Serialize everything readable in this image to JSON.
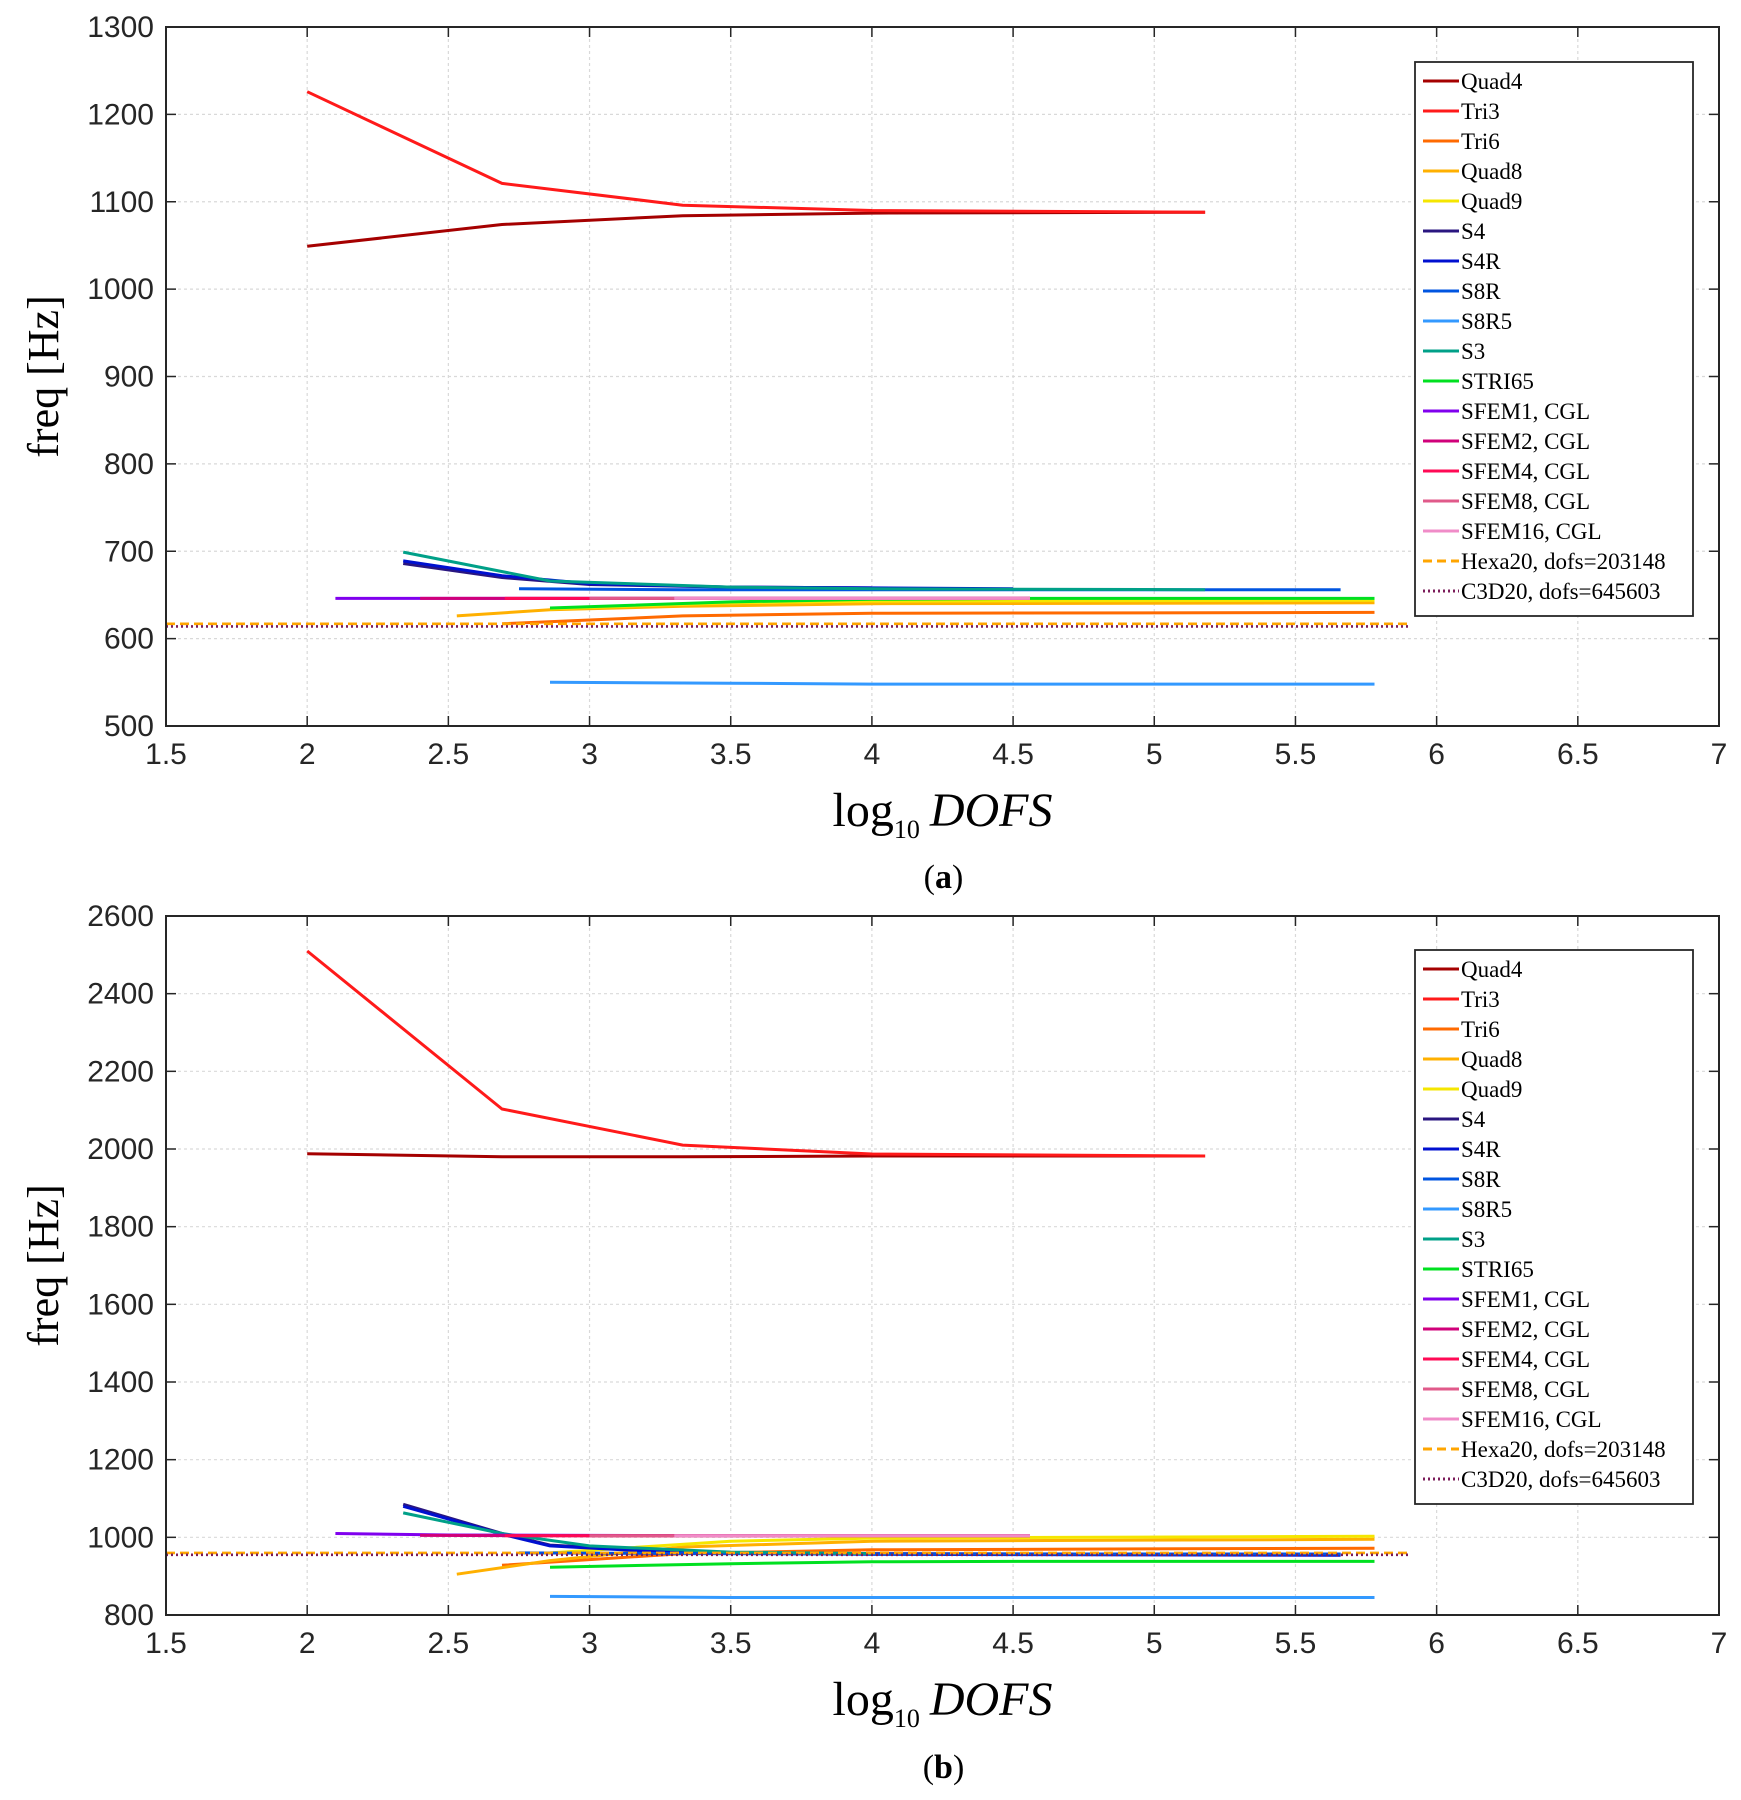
{
  "chart_data": [
    {
      "type": "line",
      "panel": "a",
      "caption": {
        "open": "(",
        "letter": "a",
        "close": ")"
      },
      "xlabel": {
        "main": "log",
        "sub": "10",
        "var": "DOFS"
      },
      "ylabel": "freq [Hz]",
      "xlim": [
        1.5,
        7
      ],
      "ylim": [
        500,
        1300
      ],
      "xticks": [
        1.5,
        2,
        2.5,
        3,
        3.5,
        4,
        4.5,
        5,
        5.5,
        6,
        6.5,
        7
      ],
      "xtick_labels": [
        "1.5",
        "2",
        "2.5",
        "3",
        "3.5",
        "4",
        "4.5",
        "5",
        "5.5",
        "6",
        "6.5",
        "7"
      ],
      "yticks": [
        500,
        600,
        700,
        800,
        900,
        1000,
        1100,
        1200,
        1300
      ],
      "ytick_labels": [
        "500",
        "600",
        "700",
        "800",
        "900",
        "1000",
        "1100",
        "1200",
        "1300"
      ],
      "grid": true,
      "legend_position": "top-right",
      "series": [
        {
          "name": "Quad4",
          "color": "#a50000",
          "dash": "solid",
          "x": [
            2.0,
            2.69,
            3.33,
            4.0,
            5.18
          ],
          "y": [
            1049,
            1074,
            1084,
            1087,
            1088
          ]
        },
        {
          "name": "Tri3",
          "color": "#ff1a1a",
          "dash": "solid",
          "x": [
            2.0,
            2.69,
            3.33,
            4.0,
            5.18
          ],
          "y": [
            1226,
            1121,
            1096,
            1090,
            1088
          ]
        },
        {
          "name": "Tri6",
          "color": "#ff6a00",
          "dash": "solid",
          "x": [
            2.69,
            3.33,
            4.0,
            5.78
          ],
          "y": [
            617,
            626,
            629,
            630
          ]
        },
        {
          "name": "Quad8",
          "color": "#ffb000",
          "dash": "solid",
          "x": [
            2.53,
            2.86,
            3.33,
            4.0,
            5.78
          ],
          "y": [
            626,
            633,
            637,
            640,
            641
          ]
        },
        {
          "name": "Quad9",
          "color": "#f5e600",
          "dash": "solid",
          "x": [
            2.86,
            3.5,
            4.0,
            5.78
          ],
          "y": [
            634,
            641,
            643,
            644
          ]
        },
        {
          "name": "S4",
          "color": "#2a1680",
          "dash": "solid",
          "x": [
            2.34,
            2.69,
            3.0,
            3.5,
            4.0
          ],
          "y": [
            686,
            670,
            662,
            659,
            658
          ]
        },
        {
          "name": "S4R",
          "color": "#0010d0",
          "dash": "solid",
          "x": [
            2.34,
            2.69,
            3.0,
            3.5,
            4.0,
            4.5
          ],
          "y": [
            689,
            672,
            663,
            659,
            658,
            657
          ]
        },
        {
          "name": "S8R",
          "color": "#0055e0",
          "dash": "solid",
          "x": [
            2.75,
            3.33,
            4.0,
            5.66
          ],
          "y": [
            657,
            656,
            656,
            656
          ]
        },
        {
          "name": "S8R5",
          "color": "#3399ff",
          "dash": "solid",
          "x": [
            2.86,
            3.5,
            4.0,
            5.78
          ],
          "y": [
            550,
            549,
            548,
            548
          ]
        },
        {
          "name": "S3",
          "color": "#00a088",
          "dash": "solid",
          "x": [
            2.34,
            2.86,
            3.5,
            4.0,
            5.18
          ],
          "y": [
            699,
            666,
            659,
            657,
            656
          ]
        },
        {
          "name": "STRI65",
          "color": "#00e020",
          "dash": "solid",
          "x": [
            2.86,
            3.5,
            4.0,
            4.56,
            5.78
          ],
          "y": [
            635,
            642,
            645,
            646,
            646
          ]
        },
        {
          "name": "SFEM1, CGL",
          "color": "#8000ee",
          "dash": "solid",
          "x": [
            2.1,
            3.0,
            4.0,
            4.56
          ],
          "y": [
            646,
            646,
            646,
            646
          ]
        },
        {
          "name": "SFEM2, CGL",
          "color": "#d0007a",
          "dash": "solid",
          "x": [
            2.4,
            3.0,
            4.0,
            4.56
          ],
          "y": [
            646,
            646,
            646,
            646
          ]
        },
        {
          "name": "SFEM4, CGL",
          "color": "#ff0a55",
          "dash": "solid",
          "x": [
            2.7,
            4.56
          ],
          "y": [
            646,
            646
          ]
        },
        {
          "name": "SFEM8, CGL",
          "color": "#e05a8a",
          "dash": "solid",
          "x": [
            3.0,
            4.56
          ],
          "y": [
            646,
            646
          ]
        },
        {
          "name": "SFEM16, CGL",
          "color": "#f08cc8",
          "dash": "solid",
          "x": [
            3.3,
            4.56
          ],
          "y": [
            646,
            646
          ]
        },
        {
          "name": "Hexa20, dofs=203148",
          "color": "#ffa500",
          "dash": "dashed",
          "x": [
            1.5,
            5.9
          ],
          "y": [
            617,
            617
          ]
        },
        {
          "name": "C3D20, dofs=645603",
          "color": "#7b1c5a",
          "dash": "dotted",
          "x": [
            1.5,
            5.9
          ],
          "y": [
            614,
            614
          ]
        }
      ]
    },
    {
      "type": "line",
      "panel": "b",
      "caption": {
        "open": "(",
        "letter": "b",
        "close": ")"
      },
      "xlabel": {
        "main": "log",
        "sub": "10",
        "var": "DOFS"
      },
      "ylabel": "freq [Hz]",
      "xlim": [
        1.5,
        7
      ],
      "ylim": [
        800,
        2600
      ],
      "xticks": [
        1.5,
        2,
        2.5,
        3,
        3.5,
        4,
        4.5,
        5,
        5.5,
        6,
        6.5,
        7
      ],
      "xtick_labels": [
        "1.5",
        "2",
        "2.5",
        "3",
        "3.5",
        "4",
        "4.5",
        "5",
        "5.5",
        "6",
        "6.5",
        "7"
      ],
      "yticks": [
        800,
        1000,
        1200,
        1400,
        1600,
        1800,
        2000,
        2200,
        2400,
        2600
      ],
      "ytick_labels": [
        "800",
        "1000",
        "1200",
        "1400",
        "1600",
        "1800",
        "2000",
        "2200",
        "2400",
        "2600"
      ],
      "grid": true,
      "legend_position": "top-right",
      "series": [
        {
          "name": "Quad4",
          "color": "#a50000",
          "dash": "solid",
          "x": [
            2.0,
            2.69,
            3.33,
            4.0,
            5.18
          ],
          "y": [
            1988,
            1980,
            1980,
            1982,
            1982
          ]
        },
        {
          "name": "Tri3",
          "color": "#ff1a1a",
          "dash": "solid",
          "x": [
            2.0,
            2.69,
            3.33,
            4.0,
            5.18
          ],
          "y": [
            2510,
            2103,
            2010,
            1987,
            1982
          ]
        },
        {
          "name": "Tri6",
          "color": "#ff6a00",
          "dash": "solid",
          "x": [
            2.69,
            3.33,
            4.0,
            5.78
          ],
          "y": [
            928,
            958,
            968,
            972
          ]
        },
        {
          "name": "Quad8",
          "color": "#ffb000",
          "dash": "solid",
          "x": [
            2.53,
            2.86,
            3.33,
            4.0,
            5.78
          ],
          "y": [
            905,
            940,
            975,
            990,
            995
          ]
        },
        {
          "name": "Quad9",
          "color": "#f5e600",
          "dash": "solid",
          "x": [
            2.86,
            3.5,
            4.0,
            5.78
          ],
          "y": [
            960,
            990,
            998,
            1003
          ]
        },
        {
          "name": "S4",
          "color": "#2a1680",
          "dash": "solid",
          "x": [
            2.34,
            2.69,
            2.86,
            3.33,
            4.0,
            5.66
          ],
          "y": [
            1085,
            1010,
            980,
            962,
            958,
            956
          ]
        },
        {
          "name": "S4R",
          "color": "#0010d0",
          "dash": "solid",
          "x": [
            2.34,
            2.69,
            2.86,
            3.33,
            4.0,
            5.66
          ],
          "y": [
            1080,
            1008,
            978,
            960,
            956,
            954
          ]
        },
        {
          "name": "S8R",
          "color": "#0055e0",
          "dash": "solid",
          "x": [
            2.75,
            3.33,
            4.0,
            5.66
          ],
          "y": [
            960,
            958,
            957,
            957
          ]
        },
        {
          "name": "S8R5",
          "color": "#3399ff",
          "dash": "solid",
          "x": [
            2.86,
            3.5,
            4.0,
            5.78
          ],
          "y": [
            848,
            845,
            845,
            845
          ]
        },
        {
          "name": "S3",
          "color": "#00a088",
          "dash": "solid",
          "x": [
            2.34,
            2.69,
            3.0,
            3.5,
            4.0
          ],
          "y": [
            1063,
            1010,
            978,
            962,
            958
          ]
        },
        {
          "name": "STRI65",
          "color": "#00e020",
          "dash": "solid",
          "x": [
            2.86,
            3.5,
            4.0,
            4.56,
            5.78
          ],
          "y": [
            923,
            932,
            937,
            938,
            938
          ]
        },
        {
          "name": "SFEM1, CGL",
          "color": "#8000ee",
          "dash": "solid",
          "x": [
            2.1,
            2.5,
            3.0,
            4.0,
            4.56
          ],
          "y": [
            1010,
            1006,
            1005,
            1004,
            1004
          ]
        },
        {
          "name": "SFEM2, CGL",
          "color": "#d0007a",
          "dash": "solid",
          "x": [
            2.4,
            3.0,
            4.0,
            4.56
          ],
          "y": [
            1005,
            1004,
            1004,
            1004
          ]
        },
        {
          "name": "SFEM4, CGL",
          "color": "#ff0a55",
          "dash": "solid",
          "x": [
            2.7,
            4.56
          ],
          "y": [
            1004,
            1004
          ]
        },
        {
          "name": "SFEM8, CGL",
          "color": "#e05a8a",
          "dash": "solid",
          "x": [
            3.0,
            4.56
          ],
          "y": [
            1004,
            1004
          ]
        },
        {
          "name": "SFEM16, CGL",
          "color": "#f08cc8",
          "dash": "solid",
          "x": [
            3.3,
            4.56
          ],
          "y": [
            1004,
            1004
          ]
        },
        {
          "name": "Hexa20, dofs=203148",
          "color": "#ffa500",
          "dash": "dashed",
          "x": [
            1.5,
            5.9
          ],
          "y": [
            960,
            960
          ]
        },
        {
          "name": "C3D20, dofs=645603",
          "color": "#7b1c5a",
          "dash": "dotted",
          "x": [
            1.5,
            5.9
          ],
          "y": [
            955,
            955
          ]
        }
      ]
    }
  ]
}
